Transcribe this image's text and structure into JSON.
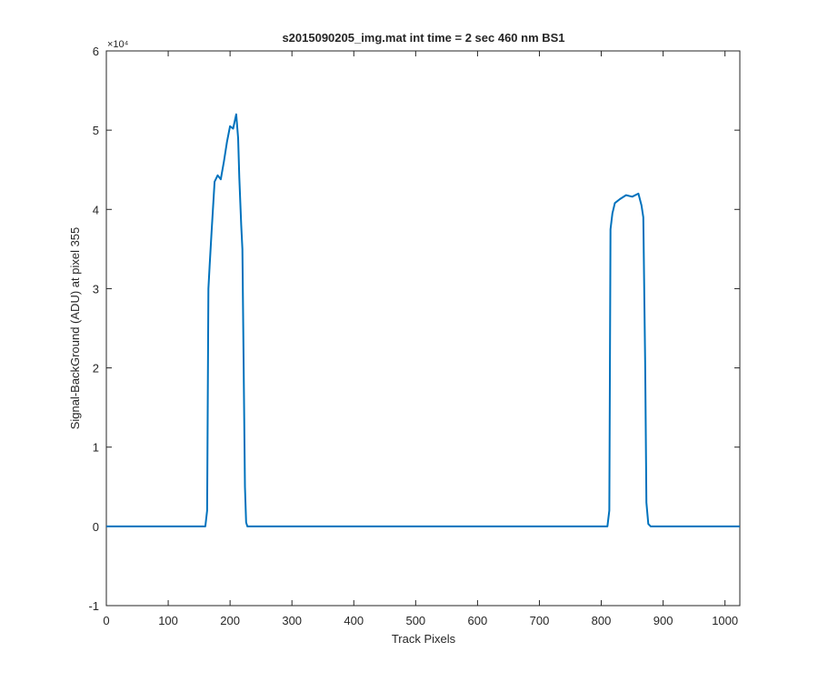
{
  "chart_data": {
    "type": "line",
    "title": "s2015090205_img.mat int time = 2 sec  460 nm BS1",
    "xlabel": "Track Pixels",
    "ylabel": "Signal-BackGround (ADU) at pixel 355",
    "y_exponent_label": "×10⁴",
    "xlim": [
      0,
      1024
    ],
    "ylim": [
      -10000,
      60000
    ],
    "xticks": [
      0,
      100,
      200,
      300,
      400,
      500,
      600,
      700,
      800,
      900,
      1000
    ],
    "yticks": [
      -10000,
      0,
      10000,
      20000,
      30000,
      40000,
      50000,
      60000
    ],
    "ytick_labels": [
      "-1",
      "0",
      "1",
      "2",
      "3",
      "4",
      "5",
      "6"
    ],
    "xtick_labels": [
      "0",
      "100",
      "200",
      "300",
      "400",
      "500",
      "600",
      "700",
      "800",
      "900",
      "1000"
    ],
    "grid": false,
    "line_color": "#0072BD",
    "series": [
      {
        "x": [
          0,
          160,
          163,
          165,
          167,
          170,
          175,
          180,
          185,
          190,
          195,
          200,
          205,
          210,
          213,
          215,
          218,
          220,
          222,
          224,
          226,
          228,
          232,
          500,
          810,
          813,
          815,
          818,
          822,
          830,
          840,
          850,
          860,
          865,
          868,
          871,
          873,
          876,
          880,
          1024
        ],
        "y": [
          0,
          0,
          2000,
          30000,
          33000,
          37000,
          43500,
          44300,
          43800,
          46000,
          48500,
          50500,
          50200,
          52000,
          49000,
          44000,
          38000,
          35000,
          20000,
          5000,
          500,
          0,
          0,
          0,
          0,
          2000,
          37500,
          39500,
          40800,
          41300,
          41800,
          41600,
          42000,
          40500,
          39000,
          20000,
          3000,
          300,
          0,
          0
        ]
      }
    ]
  }
}
